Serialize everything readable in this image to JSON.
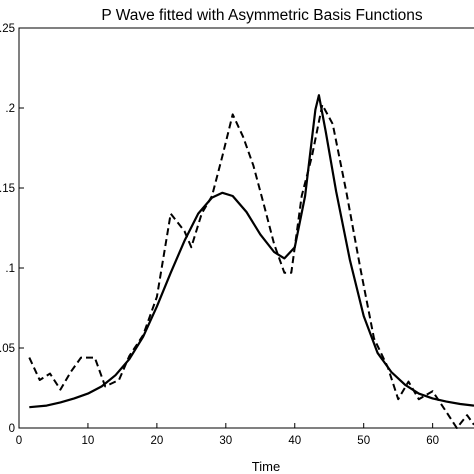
{
  "chart_data": {
    "type": "line",
    "title": "P Wave fitted with Asymmetric Basis Functions",
    "xlabel": "Time",
    "ylabel": "",
    "xlim": [
      0,
      66
    ],
    "ylim": [
      0,
      0.25
    ],
    "xticks": [
      0,
      10,
      20,
      30,
      40,
      50,
      60
    ],
    "yticks": [
      0,
      0.05,
      0.1,
      0.15,
      0.2,
      0.25
    ],
    "ytick_labels": [
      "0",
      ".05",
      ".1",
      ".15",
      ".2",
      ".25"
    ],
    "grid": false,
    "legend": "none",
    "series": [
      {
        "style": "solid",
        "x": [
          1.5,
          4,
          6,
          8,
          10,
          12,
          14,
          16,
          18,
          20,
          22,
          24,
          26,
          28,
          29.5,
          31,
          33,
          35,
          37,
          38.5,
          40,
          41.5,
          43,
          43.5,
          44.5,
          46,
          48,
          50,
          52,
          54,
          56,
          58,
          60,
          62,
          64,
          66
        ],
        "y": [
          0.013,
          0.014,
          0.016,
          0.0185,
          0.0215,
          0.026,
          0.033,
          0.043,
          0.057,
          0.076,
          0.097,
          0.117,
          0.134,
          0.144,
          0.147,
          0.145,
          0.135,
          0.121,
          0.11,
          0.106,
          0.113,
          0.145,
          0.199,
          0.208,
          0.185,
          0.148,
          0.105,
          0.07,
          0.047,
          0.035,
          0.027,
          0.0215,
          0.0185,
          0.0165,
          0.015,
          0.014
        ]
      },
      {
        "style": "dashed",
        "x": [
          1.5,
          3,
          4.5,
          6,
          7.5,
          9,
          11,
          12.5,
          14.5,
          16,
          18,
          20,
          22,
          24,
          25,
          26.5,
          28,
          29.5,
          31,
          32.5,
          34,
          35.5,
          37,
          38.5,
          39.5,
          41,
          42.5,
          44,
          45.5,
          47.5,
          49.5,
          51.5,
          53.5,
          55,
          56.5,
          58,
          60,
          62,
          63.5,
          65,
          66
        ],
        "y": [
          0.044,
          0.03,
          0.034,
          0.024,
          0.035,
          0.044,
          0.044,
          0.026,
          0.03,
          0.045,
          0.058,
          0.082,
          0.134,
          0.123,
          0.113,
          0.134,
          0.145,
          0.17,
          0.196,
          0.182,
          0.164,
          0.14,
          0.115,
          0.097,
          0.097,
          0.145,
          0.17,
          0.202,
          0.19,
          0.147,
          0.1,
          0.056,
          0.038,
          0.018,
          0.029,
          0.018,
          0.023,
          0.01,
          0.0,
          0.008,
          0.002
        ]
      }
    ]
  }
}
